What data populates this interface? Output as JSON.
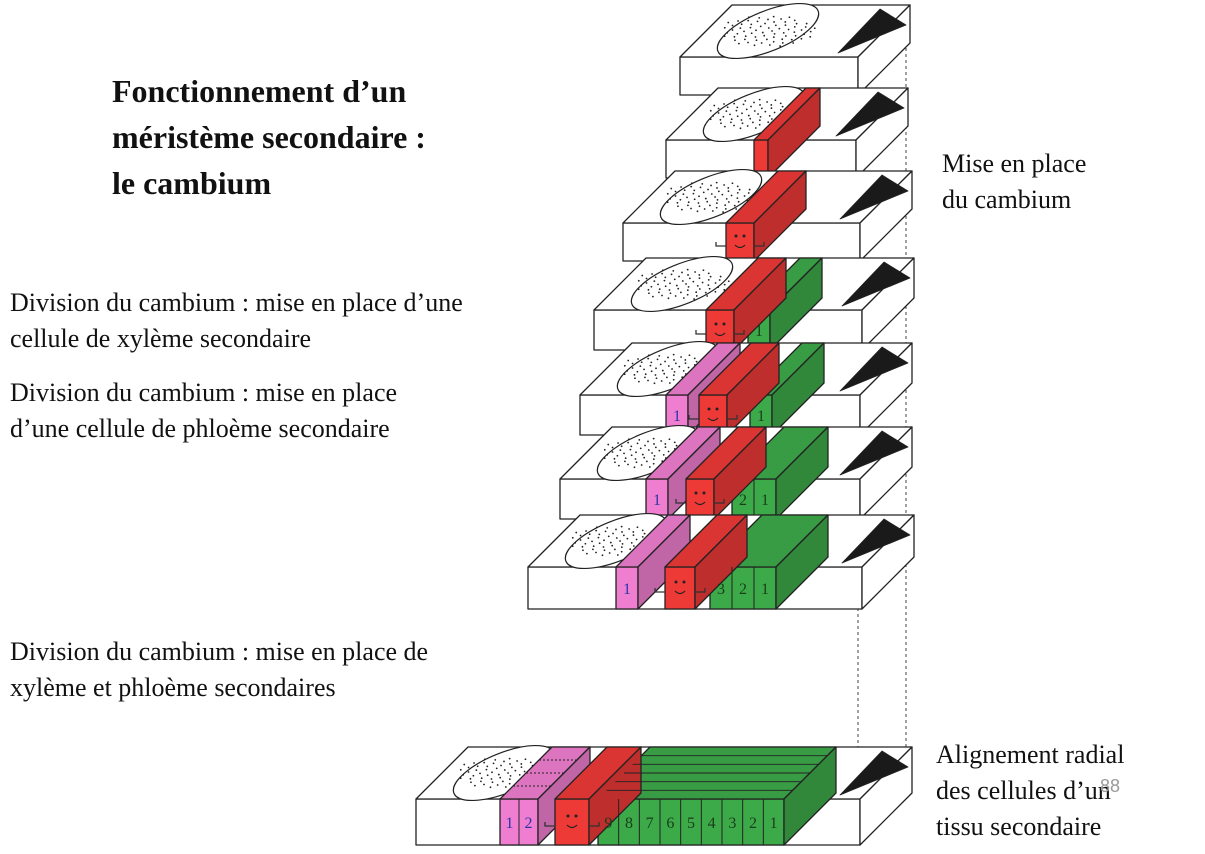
{
  "title": {
    "line1": "Fonctionnement d’un",
    "line2": "méristème secondaire :",
    "line3": "le cambium"
  },
  "labels": {
    "mise_en_place": [
      "Mise en place",
      "du cambium"
    ],
    "division_xyleme": [
      "Division du cambium : mise en place d’une",
      "cellule de xylème secondaire"
    ],
    "division_phloeme": [
      "Division du cambium : mise en place",
      "d’une cellule de phloème secondaire"
    ],
    "division_both": [
      "Division du cambium : mise en place de",
      "xylème et phloème secondaires"
    ],
    "alignement": [
      "Alignement radial",
      "des cellules d’un",
      "tissu secondaire"
    ]
  },
  "page_number": "88",
  "colors": {
    "cambium": "#ee3a37",
    "xyleme": "#3daa4a",
    "phloeme": "#f07ed0",
    "xylem_number": "#1a3d1a",
    "phloem_number": "#2a35a8",
    "pith": "#1a1a1a",
    "outline": "#222222",
    "guide_line": "#444444"
  },
  "slab_cell_numbers": [
    {
      "phloem": [],
      "xylem": []
    },
    {
      "phloem": [],
      "xylem": []
    },
    {
      "phloem": [],
      "xylem": []
    },
    {
      "phloem": [],
      "xylem": [
        "1"
      ]
    },
    {
      "phloem": [
        "1"
      ],
      "xylem": [
        "1"
      ]
    },
    {
      "phloem": [
        "1"
      ],
      "xylem": [
        "2",
        "1"
      ]
    },
    {
      "phloem": [
        "1"
      ],
      "xylem": [
        "3",
        "2",
        "1"
      ]
    },
    {
      "phloem": [
        "1",
        "2"
      ],
      "xylem": [
        "9",
        "8",
        "7",
        "6",
        "5",
        "4",
        "3",
        "2",
        "1"
      ]
    }
  ]
}
